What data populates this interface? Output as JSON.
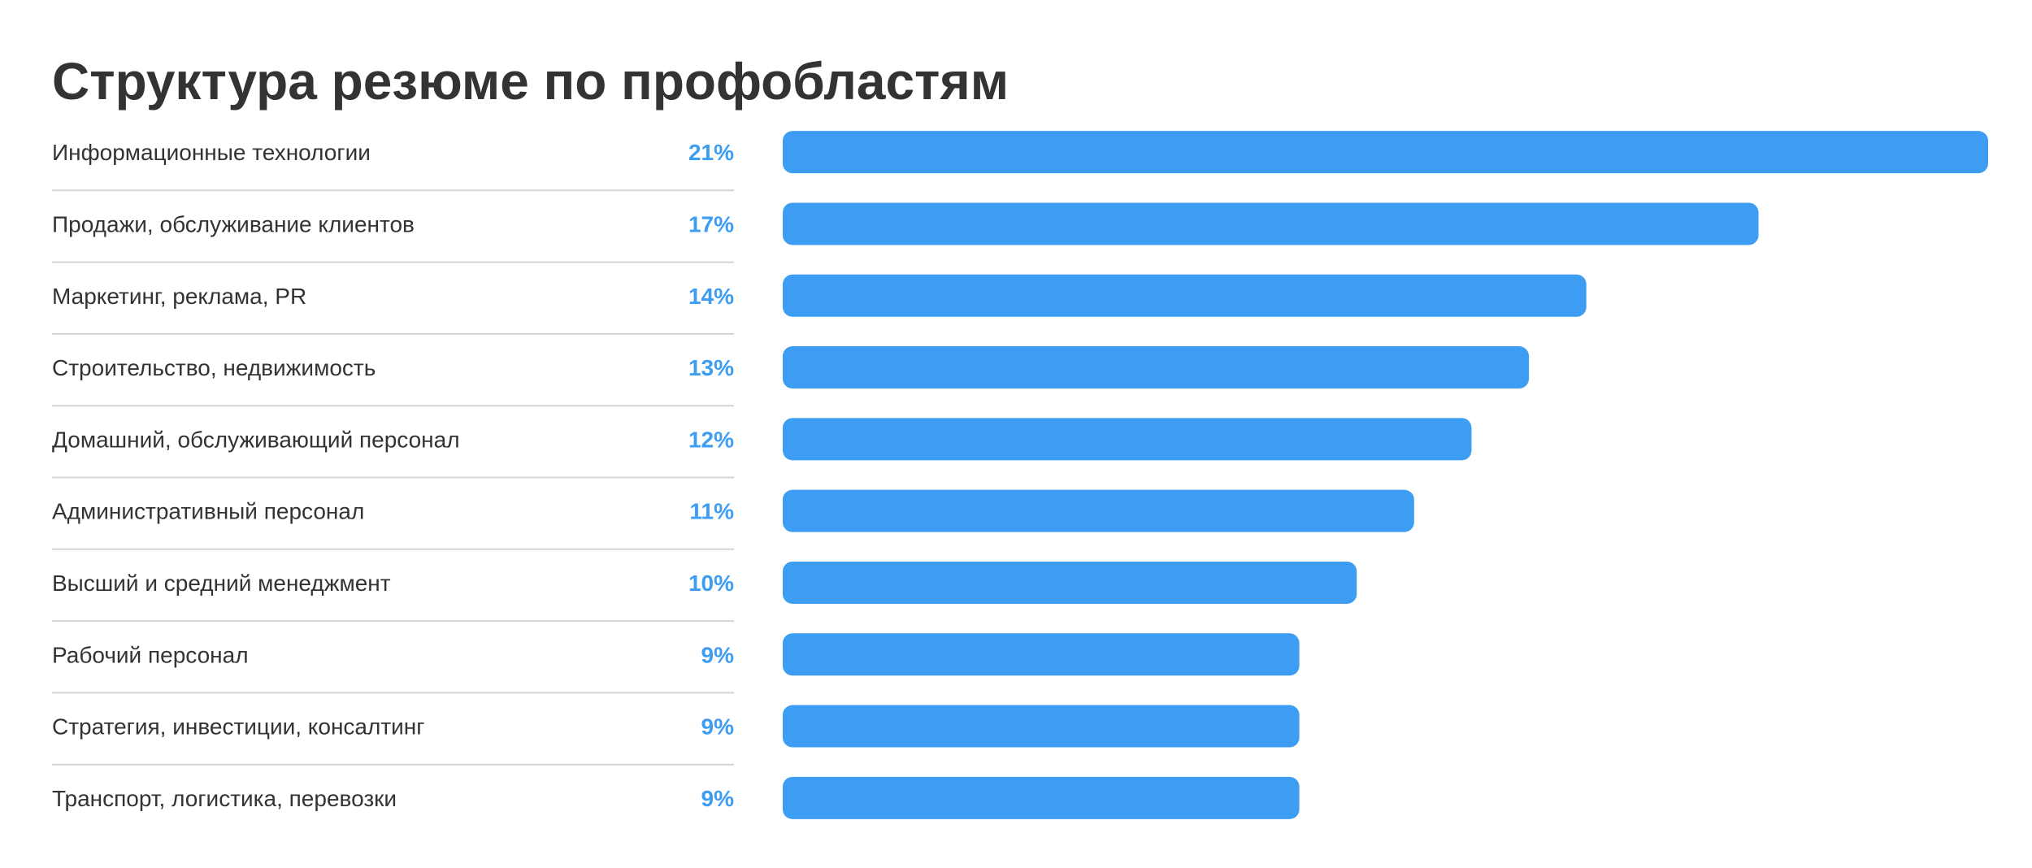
{
  "chart_data": {
    "type": "bar",
    "orientation": "horizontal",
    "title": "Структура резюме по профобластям",
    "categories": [
      "Информационные технологии",
      "Продажи, обслуживание клиентов",
      "Маркетинг, реклама, PR",
      "Строительство, недвижимость",
      "Домашний, обслуживающий персонал",
      "Административный персонал",
      "Высший и средний менеджмент",
      "Рабочий персонал",
      "Стратегия, инвестиции, консалтинг",
      "Транспорт, логистика, перевозки"
    ],
    "values": [
      21,
      17,
      14,
      13,
      12,
      11,
      10,
      9,
      9,
      9
    ],
    "value_labels": [
      "21%",
      "17%",
      "14%",
      "13%",
      "12%",
      "11%",
      "10%",
      "9%",
      "9%",
      "9%"
    ],
    "xlim": [
      0,
      21
    ],
    "grid": false,
    "legend": "none",
    "colors": {
      "bar": "#3d9df2",
      "value_text": "#3d9df2",
      "divider": "#d4d4d4",
      "text": "#333333"
    }
  }
}
